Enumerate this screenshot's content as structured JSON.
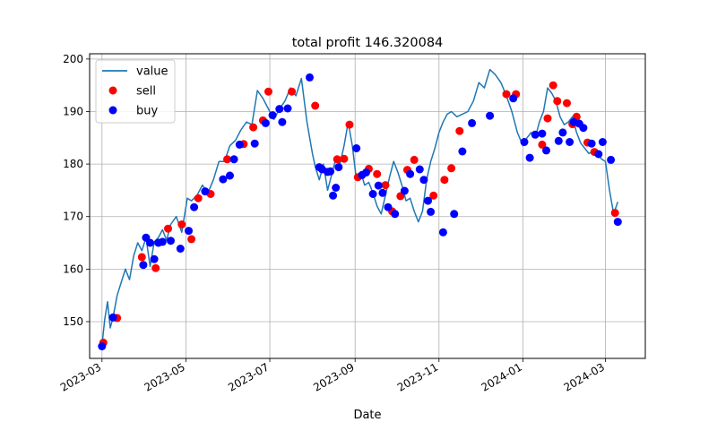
{
  "chart_data": {
    "type": "line",
    "title": "total profit 146.320084",
    "xlabel": "Date",
    "ylabel": "",
    "x_ticks": [
      "2023-03",
      "2023-05",
      "2023-07",
      "2023-09",
      "2023-11",
      "2024-01",
      "2024-03"
    ],
    "y_ticks": [
      150,
      160,
      170,
      180,
      190,
      200
    ],
    "xlim": [
      "2023-02-20",
      "2024-03-30"
    ],
    "ylim": [
      143,
      201
    ],
    "grid": true,
    "legend": "top-left",
    "colors": {
      "value": "#1f77b4",
      "sell": "#ff0000",
      "buy": "#0000ff"
    },
    "series": [
      {
        "name": "value",
        "kind": "line",
        "x": [
          "2023-03-01",
          "2023-03-03",
          "2023-03-05",
          "2023-03-07",
          "2023-03-09",
          "2023-03-12",
          "2023-03-15",
          "2023-03-18",
          "2023-03-21",
          "2023-03-24",
          "2023-03-27",
          "2023-03-30",
          "2023-04-02",
          "2023-04-05",
          "2023-04-08",
          "2023-04-11",
          "2023-04-14",
          "2023-04-17",
          "2023-04-20",
          "2023-04-24",
          "2023-04-28",
          "2023-05-02",
          "2023-05-05",
          "2023-05-09",
          "2023-05-13",
          "2023-05-17",
          "2023-05-21",
          "2023-05-25",
          "2023-05-29",
          "2023-06-02",
          "2023-06-06",
          "2023-06-10",
          "2023-06-14",
          "2023-06-18",
          "2023-06-22",
          "2023-06-26",
          "2023-06-30",
          "2023-07-04",
          "2023-07-08",
          "2023-07-12",
          "2023-07-16",
          "2023-07-20",
          "2023-07-24",
          "2023-07-28",
          "2023-08-01",
          "2023-08-03",
          "2023-08-06",
          "2023-08-09",
          "2023-08-12",
          "2023-08-15",
          "2023-08-18",
          "2023-08-21",
          "2023-08-24",
          "2023-08-27",
          "2023-08-30",
          "2023-09-02",
          "2023-09-05",
          "2023-09-08",
          "2023-09-11",
          "2023-09-14",
          "2023-09-17",
          "2023-09-20",
          "2023-09-23",
          "2023-09-26",
          "2023-09-29",
          "2023-10-02",
          "2023-10-05",
          "2023-10-08",
          "2023-10-11",
          "2023-10-14",
          "2023-10-17",
          "2023-10-20",
          "2023-10-23",
          "2023-10-26",
          "2023-10-29",
          "2023-11-01",
          "2023-11-04",
          "2023-11-07",
          "2023-11-10",
          "2023-11-14",
          "2023-11-18",
          "2023-11-22",
          "2023-11-26",
          "2023-11-30",
          "2023-12-04",
          "2023-12-08",
          "2023-12-12",
          "2023-12-16",
          "2023-12-20",
          "2023-12-24",
          "2023-12-28",
          "2024-01-01",
          "2024-01-04",
          "2024-01-07",
          "2024-01-10",
          "2024-01-13",
          "2024-01-16",
          "2024-01-19",
          "2024-01-22",
          "2024-01-25",
          "2024-01-28",
          "2024-01-31",
          "2024-02-03",
          "2024-02-06",
          "2024-02-09",
          "2024-02-12",
          "2024-02-15",
          "2024-02-18",
          "2024-02-21",
          "2024-02-24",
          "2024-02-27",
          "2024-03-01",
          "2024-03-04",
          "2024-03-07",
          "2024-03-10"
        ],
        "y": [
          145.5,
          150.5,
          153.8,
          148.8,
          150.8,
          155.0,
          157.5,
          160.0,
          158.0,
          162.5,
          165.0,
          163.5,
          166.0,
          160.5,
          165.2,
          166.0,
          167.5,
          165.5,
          168.5,
          170.0,
          167.0,
          173.5,
          173.0,
          174.0,
          176.0,
          174.5,
          177.0,
          180.5,
          180.5,
          183.5,
          184.5,
          186.5,
          188.0,
          187.5,
          194.0,
          192.5,
          190.5,
          188.5,
          190.5,
          192.0,
          194.5,
          193.0,
          196.3,
          188.0,
          182.0,
          179.5,
          177.0,
          180.0,
          175.0,
          178.0,
          181.0,
          180.0,
          183.5,
          188.0,
          183.5,
          177.0,
          178.5,
          176.0,
          176.5,
          174.5,
          172.0,
          170.5,
          174.0,
          177.5,
          180.5,
          178.5,
          176.0,
          173.0,
          173.5,
          171.0,
          169.0,
          171.0,
          177.0,
          180.5,
          183.0,
          186.0,
          188.0,
          189.5,
          190.0,
          189.0,
          189.5,
          190.0,
          192.0,
          195.5,
          194.5,
          198.0,
          197.0,
          195.5,
          193.0,
          190.0,
          186.0,
          183.5,
          185.0,
          186.0,
          185.0,
          188.0,
          190.0,
          194.5,
          193.5,
          192.0,
          189.0,
          187.5,
          188.0,
          189.0,
          186.0,
          184.0,
          183.0,
          182.0,
          182.5,
          182.0,
          181.0,
          180.5,
          175.0,
          170.5,
          172.8
        ]
      },
      {
        "name": "sell",
        "kind": "scatter",
        "x": [
          "2023-03-02",
          "2023-03-12",
          "2023-03-30",
          "2023-04-09",
          "2023-04-18",
          "2023-04-28",
          "2023-05-05",
          "2023-05-10",
          "2023-05-19",
          "2023-05-31",
          "2023-06-12",
          "2023-06-19",
          "2023-06-26",
          "2023-06-30",
          "2023-07-17",
          "2023-08-03",
          "2023-08-19",
          "2023-08-24",
          "2023-08-28",
          "2023-09-03",
          "2023-09-11",
          "2023-09-17",
          "2023-09-23",
          "2023-09-28",
          "2023-10-04",
          "2023-10-09",
          "2023-10-14",
          "2023-10-28",
          "2023-11-05",
          "2023-11-10",
          "2023-11-16",
          "2023-12-20",
          "2023-12-27",
          "2024-01-15",
          "2024-01-19",
          "2024-01-23",
          "2024-01-26",
          "2024-02-02",
          "2024-02-06",
          "2024-02-09",
          "2024-02-17",
          "2024-02-22",
          "2024-03-08"
        ],
        "y": [
          146.0,
          150.7,
          162.3,
          160.2,
          167.7,
          168.5,
          165.7,
          173.5,
          174.3,
          180.9,
          183.8,
          187.0,
          188.3,
          193.8,
          193.8,
          191.1,
          180.9,
          181.0,
          187.5,
          177.5,
          179.1,
          178.1,
          176.0,
          171.0,
          173.9,
          178.9,
          180.8,
          174.0,
          177.0,
          179.2,
          186.3,
          193.3,
          193.3,
          183.7,
          188.7,
          195.0,
          192.0,
          191.6,
          187.6,
          189.0,
          184.1,
          182.3,
          170.7
        ]
      },
      {
        "name": "buy",
        "kind": "scatter",
        "x": [
          "2023-03-01",
          "2023-03-09",
          "2023-03-31",
          "2023-04-02",
          "2023-04-05",
          "2023-04-08",
          "2023-04-11",
          "2023-04-14",
          "2023-04-20",
          "2023-04-27",
          "2023-05-03",
          "2023-05-07",
          "2023-05-15",
          "2023-05-28",
          "2023-06-02",
          "2023-06-05",
          "2023-06-09",
          "2023-06-20",
          "2023-06-28",
          "2023-07-03",
          "2023-07-08",
          "2023-07-10",
          "2023-07-14",
          "2023-07-30",
          "2023-08-06",
          "2023-08-08",
          "2023-08-12",
          "2023-08-14",
          "2023-08-16",
          "2023-08-18",
          "2023-08-20",
          "2023-09-02",
          "2023-09-06",
          "2023-09-09",
          "2023-09-14",
          "2023-09-18",
          "2023-09-21",
          "2023-09-25",
          "2023-09-30",
          "2023-10-07",
          "2023-10-11",
          "2023-10-18",
          "2023-10-21",
          "2023-10-24",
          "2023-10-26",
          "2023-11-04",
          "2023-11-12",
          "2023-11-18",
          "2023-11-25",
          "2023-12-08",
          "2023-12-25",
          "2024-01-02",
          "2024-01-06",
          "2024-01-10",
          "2024-01-15",
          "2024-01-18",
          "2024-01-27",
          "2024-01-30",
          "2024-02-04",
          "2024-02-07",
          "2024-02-11",
          "2024-02-14",
          "2024-02-20",
          "2024-02-25",
          "2024-02-28",
          "2024-03-05",
          "2024-03-10"
        ],
        "y": [
          145.3,
          150.8,
          160.8,
          166.0,
          165.0,
          161.9,
          165.0,
          165.2,
          165.4,
          163.9,
          167.3,
          171.8,
          174.8,
          177.1,
          177.8,
          180.9,
          183.7,
          183.9,
          187.8,
          189.3,
          190.5,
          188.0,
          190.6,
          196.5,
          179.4,
          179.0,
          178.5,
          178.6,
          174.0,
          175.5,
          179.4,
          183.0,
          177.9,
          178.4,
          174.3,
          175.9,
          174.5,
          171.8,
          170.5,
          174.9,
          178.1,
          179.0,
          177.0,
          173.0,
          170.9,
          167.0,
          170.5,
          182.4,
          187.8,
          189.2,
          192.5,
          184.2,
          181.2,
          185.6,
          185.8,
          182.6,
          184.4,
          186.0,
          184.2,
          188.0,
          187.7,
          186.9,
          183.9,
          181.9,
          184.2,
          180.8,
          169.0
        ]
      }
    ]
  }
}
